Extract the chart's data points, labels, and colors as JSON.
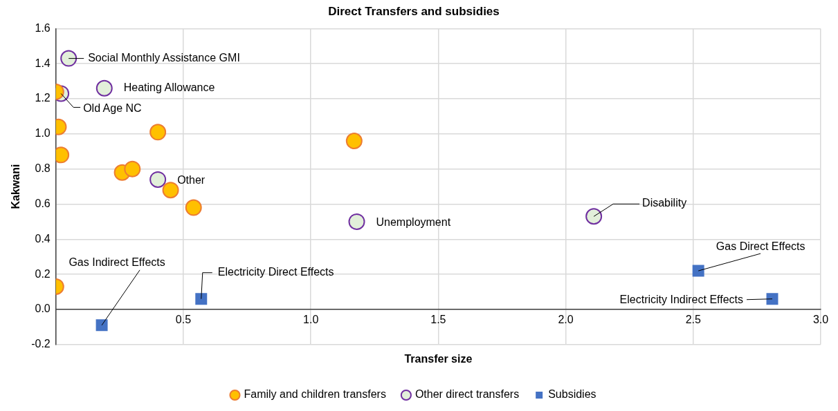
{
  "chart_data": {
    "type": "scatter",
    "title": "Direct Transfers and subsidies",
    "xlabel": "Transfer size",
    "ylabel": "Kakwani",
    "xlim": [
      0,
      3
    ],
    "xticks": [
      {
        "value": 0,
        "label": null
      },
      {
        "value": 0.5,
        "label": "0.5"
      },
      {
        "value": 1,
        "label": "1.0"
      },
      {
        "value": 1.5,
        "label": "1.5"
      },
      {
        "value": 2,
        "label": "2.0"
      },
      {
        "value": 2.5,
        "label": "2.5"
      },
      {
        "value": 3,
        "label": "3.0"
      }
    ],
    "ylim": [
      -0.2,
      1.6
    ],
    "yticks": [
      {
        "value": -0.2,
        "label": "-0.2"
      },
      {
        "value": 0,
        "label": "0.0"
      },
      {
        "value": 0.2,
        "label": "0.2"
      },
      {
        "value": 0.4,
        "label": "0.4"
      },
      {
        "value": 0.6,
        "label": "0.6"
      },
      {
        "value": 0.8,
        "label": "0.8"
      },
      {
        "value": 1,
        "label": "1.0"
      },
      {
        "value": 1.2,
        "label": "1.2"
      },
      {
        "value": 1.4,
        "label": "1.4"
      },
      {
        "value": 1.6,
        "label": "1.6"
      }
    ],
    "grid": true,
    "legend": "bottom",
    "series": [
      {
        "name": "Family and children transfers",
        "color": "#ffc000",
        "marker": "circle",
        "x": [
          0.0,
          0.01,
          0.02,
          0.4,
          0.26,
          0.3,
          0.45,
          0.54,
          1.17,
          0.0
        ],
        "values": [
          1.24,
          1.04,
          0.88,
          1.01,
          0.78,
          0.8,
          0.68,
          0.58,
          0.96,
          0.13
        ]
      },
      {
        "name": "Other direct transfers",
        "color": "#e2efda",
        "marker": "circle",
        "x": [
          0.05,
          0.19,
          0.02,
          0.4,
          1.18,
          2.11
        ],
        "values": [
          1.43,
          1.26,
          1.23,
          0.74,
          0.5,
          0.53
        ]
      },
      {
        "name": "Subsidies",
        "color": "#4472c4",
        "marker": "square",
        "x": [
          0.18,
          0.57,
          2.52,
          2.81
        ],
        "values": [
          -0.09,
          0.06,
          0.22,
          0.06
        ]
      }
    ],
    "annotations": [
      {
        "text": "Social Monthly Assistance GMI",
        "x": 0.05,
        "y": 1.43
      },
      {
        "text": "Heating Allowance",
        "x": 0.19,
        "y": 1.26
      },
      {
        "text": "Old Age NC",
        "x": 0.02,
        "y": 1.23
      },
      {
        "text": "Other",
        "x": 0.4,
        "y": 0.74
      },
      {
        "text": "Unemployment",
        "x": 1.18,
        "y": 0.5
      },
      {
        "text": "Disability",
        "x": 2.11,
        "y": 0.53
      },
      {
        "text": "Gas Indirect Effects",
        "x": 0.18,
        "y": -0.09
      },
      {
        "text": "Electricity Direct Effects",
        "x": 0.57,
        "y": 0.06
      },
      {
        "text": "Gas Direct Effects",
        "x": 2.52,
        "y": 0.22
      },
      {
        "text": "Electricity Indirect Effects",
        "x": 2.81,
        "y": 0.06
      }
    ]
  }
}
